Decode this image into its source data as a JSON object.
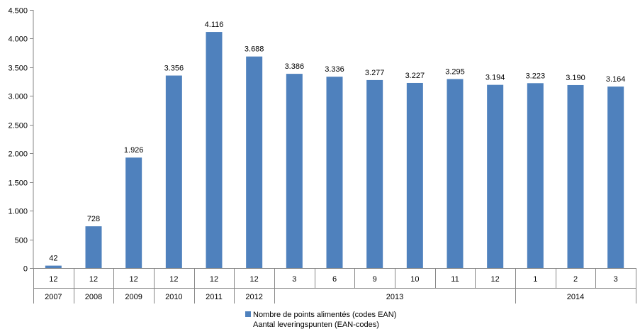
{
  "chart_data": {
    "type": "bar",
    "series": [
      {
        "name": "Nombre de points alimentés (codes EAN)",
        "name_alt": "Aantal leveringspunten (EAN-codes)",
        "color": "#4f81bd",
        "values": [
          42,
          728,
          1926,
          3356,
          4116,
          3688,
          3386,
          3336,
          3277,
          3227,
          3295,
          3194,
          3223,
          3190,
          3164
        ],
        "value_labels": [
          "42",
          "728",
          "1.926",
          "3.356",
          "4.116",
          "3.688",
          "3.386",
          "3.336",
          "3.277",
          "3.227",
          "3.295",
          "3.194",
          "3.223",
          "3.190",
          "3.164"
        ]
      }
    ],
    "months": [
      "12",
      "12",
      "12",
      "12",
      "12",
      "12",
      "3",
      "6",
      "9",
      "10",
      "11",
      "12",
      "1",
      "2",
      "3"
    ],
    "year_groups": [
      {
        "label": "2007",
        "start": 0,
        "end": 0
      },
      {
        "label": "2008",
        "start": 1,
        "end": 1
      },
      {
        "label": "2009",
        "start": 2,
        "end": 2
      },
      {
        "label": "2010",
        "start": 3,
        "end": 3
      },
      {
        "label": "2011",
        "start": 4,
        "end": 4
      },
      {
        "label": "2012",
        "start": 5,
        "end": 5
      },
      {
        "label": "2013",
        "start": 6,
        "end": 11
      },
      {
        "label": "2014",
        "start": 12,
        "end": 14
      }
    ],
    "ylim": [
      0,
      4500
    ],
    "yticks": [
      0,
      500,
      1000,
      1500,
      2000,
      2500,
      3000,
      3500,
      4000,
      4500
    ],
    "ytick_labels": [
      "0",
      "500",
      "1.000",
      "1.500",
      "2.000",
      "2.500",
      "3.000",
      "3.500",
      "4.000",
      "4.500"
    ],
    "grid": false,
    "legend_position": "bottom"
  }
}
